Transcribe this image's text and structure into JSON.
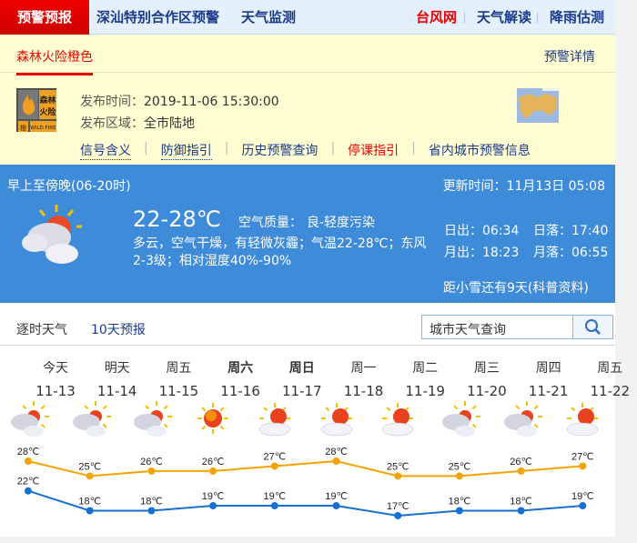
{
  "topnav": {
    "active": "预警预报",
    "left_links": [
      "深汕特别合作区预警",
      "天气监测"
    ],
    "right_links": [
      {
        "label": "台风网",
        "color": "#e60000"
      },
      {
        "label": "天气解读",
        "color": "#1a3a8a"
      },
      {
        "label": "降雨估测",
        "color": "#1a3a8a"
      }
    ]
  },
  "warning": {
    "tab": "森林火险橙色",
    "detail_link": "预警详情",
    "badge": {
      "text_top": "森林火险",
      "level": "橙",
      "label_en": "WILD FIRE",
      "color": "#f0a020"
    },
    "issue_time_label": "发布时间：",
    "issue_time": "2019-11-06 15:30:00",
    "area_label": "发布区域：",
    "area": "全市陆地",
    "links": [
      {
        "label": "信号含义",
        "color": "#1a3a8a"
      },
      {
        "label": "防御指引",
        "color": "#1a3a8a"
      },
      {
        "label": "历史预警查询",
        "color": "#1a3a8a"
      },
      {
        "label": "停课指引",
        "color": "#e60000"
      },
      {
        "label": "省内城市预警信息",
        "color": "#1a3a8a"
      }
    ]
  },
  "today": {
    "period": "早上至傍晚(06-20时)",
    "update": "更新时间：11月13日 05:08",
    "temp": "22-28℃",
    "aq_label": "空气质量：",
    "aq": "良-轻度污染",
    "desc": "多云，空气干燥，有轻微灰霾；气温22-28℃；东风2-3级；相对湿度40%-90%",
    "sunrise": "日出：06:34",
    "sunset": "日落：17:40",
    "moonrise": "月出：18:23",
    "moonset": "月落：06:55",
    "solar_term": "距小雪还有9天(科普资料)",
    "icon": "partly-cloudy"
  },
  "tabs": [
    {
      "label": "逐时天气",
      "active": false
    },
    {
      "label": "10天预报",
      "active": true
    }
  ],
  "search": {
    "placeholder": "城市天气查询",
    "icon": "search-icon"
  },
  "chart_data": {
    "type": "line",
    "categories": [
      "11-13",
      "11-14",
      "11-15",
      "11-16",
      "11-17",
      "11-18",
      "11-19",
      "11-20",
      "11-21",
      "11-22"
    ],
    "weekdays": [
      "今天",
      "明天",
      "周五",
      "周六",
      "周日",
      "周一",
      "周二",
      "周三",
      "周四",
      "周五"
    ],
    "bold_weekdays": [
      3,
      4
    ],
    "icons": [
      "partly-cloudy",
      "partly-cloudy",
      "partly-cloudy",
      "sunny",
      "sunny-cloud",
      "sunny-cloud",
      "sunny-cloud",
      "partly-cloudy",
      "partly-cloudy",
      "sunny-cloud"
    ],
    "series": [
      {
        "values": [
          28,
          25,
          26,
          26,
          27,
          28,
          25,
          25,
          26,
          27
        ],
        "color": "#f5a300"
      },
      {
        "values": [
          22,
          18,
          18,
          19,
          19,
          19,
          17,
          18,
          18,
          19
        ],
        "color": "#1670d0"
      }
    ],
    "unit": "℃"
  }
}
